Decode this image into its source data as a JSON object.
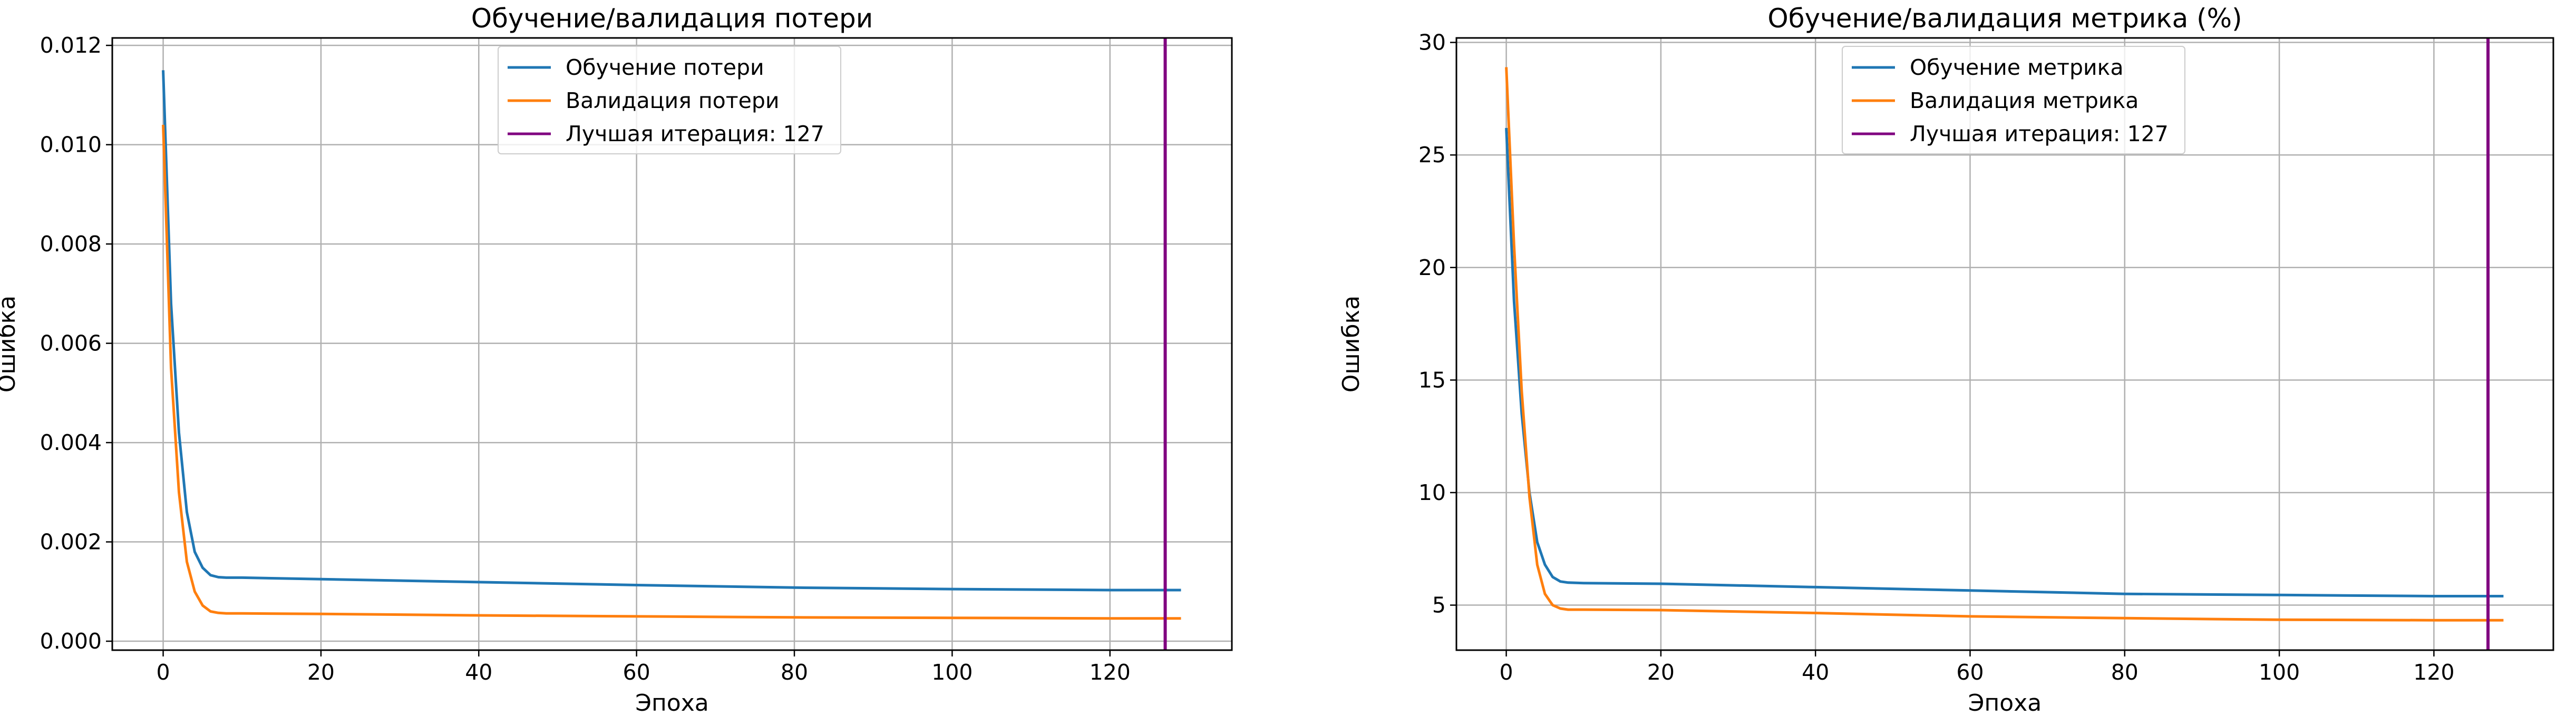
{
  "chart_data": [
    {
      "type": "line",
      "title": "Обучение/валидация потери",
      "xlabel": "Эпоха",
      "ylabel": "Ошибка",
      "xlim": [
        -6.45,
        135.45
      ],
      "ylim": [
        -0.00018,
        0.01215
      ],
      "xticks": [
        0,
        20,
        40,
        60,
        80,
        100,
        120
      ],
      "xtick_labels": [
        "0",
        "20",
        "40",
        "60",
        "80",
        "100",
        "120"
      ],
      "yticks": [
        0.0,
        0.002,
        0.004,
        0.006,
        0.008,
        0.01,
        0.012
      ],
      "ytick_labels": [
        "0.000",
        "0.002",
        "0.004",
        "0.006",
        "0.008",
        "0.010",
        "0.012"
      ],
      "grid": true,
      "legend_position": "upper center",
      "series": [
        {
          "name": "Обучение потери",
          "color": "#1f77b4",
          "x": [
            0,
            1,
            2,
            3,
            4,
            5,
            6,
            7,
            8,
            10,
            20,
            40,
            60,
            80,
            100,
            120,
            129
          ],
          "y": [
            0.0115,
            0.0068,
            0.0042,
            0.0026,
            0.0018,
            0.00148,
            0.00133,
            0.00129,
            0.00128,
            0.00128,
            0.00125,
            0.00119,
            0.00113,
            0.00108,
            0.00105,
            0.00103,
            0.00103
          ]
        },
        {
          "name": "Валидация потери",
          "color": "#ff7f0e",
          "x": [
            0,
            1,
            2,
            3,
            4,
            5,
            6,
            7,
            8,
            10,
            20,
            40,
            60,
            80,
            100,
            120,
            129
          ],
          "y": [
            0.0104,
            0.0055,
            0.003,
            0.0016,
            0.001,
            0.00072,
            0.0006,
            0.00057,
            0.00056,
            0.00056,
            0.00055,
            0.00052,
            0.0005,
            0.00048,
            0.00047,
            0.00046,
            0.00046
          ]
        }
      ],
      "vline": {
        "name": "Лучшая итерация: 127",
        "x": 127,
        "color": "#800080"
      }
    },
    {
      "type": "line",
      "title": "Обучение/валидация метрика (%)",
      "xlabel": "Эпоха",
      "ylabel": "Ошибка",
      "xlim": [
        -6.45,
        135.45
      ],
      "ylim": [
        3.0,
        30.2
      ],
      "xticks": [
        0,
        20,
        40,
        60,
        80,
        100,
        120
      ],
      "xtick_labels": [
        "0",
        "20",
        "40",
        "60",
        "80",
        "100",
        "120"
      ],
      "yticks": [
        5,
        10,
        15,
        20,
        25,
        30
      ],
      "ytick_labels": [
        "5",
        "10",
        "15",
        "20",
        "25",
        "30"
      ],
      "grid": true,
      "legend_position": "upper center",
      "series": [
        {
          "name": "Обучение метрика",
          "color": "#1f77b4",
          "x": [
            0,
            1,
            2,
            3,
            4,
            5,
            6,
            7,
            8,
            10,
            20,
            40,
            60,
            80,
            100,
            120,
            129
          ],
          "y": [
            26.2,
            18.5,
            13.5,
            10.0,
            7.8,
            6.8,
            6.25,
            6.05,
            6.0,
            5.98,
            5.95,
            5.8,
            5.65,
            5.5,
            5.45,
            5.4,
            5.4
          ]
        },
        {
          "name": "Валидация метрика",
          "color": "#ff7f0e",
          "x": [
            0,
            1,
            2,
            3,
            4,
            5,
            6,
            7,
            8,
            10,
            20,
            40,
            60,
            80,
            100,
            120,
            129
          ],
          "y": [
            28.9,
            21.0,
            14.5,
            9.8,
            6.8,
            5.5,
            5.0,
            4.85,
            4.8,
            4.8,
            4.78,
            4.65,
            4.5,
            4.42,
            4.35,
            4.33,
            4.33
          ]
        }
      ],
      "vline": {
        "name": "Лучшая итерация: 127",
        "x": 127,
        "color": "#800080"
      }
    }
  ]
}
